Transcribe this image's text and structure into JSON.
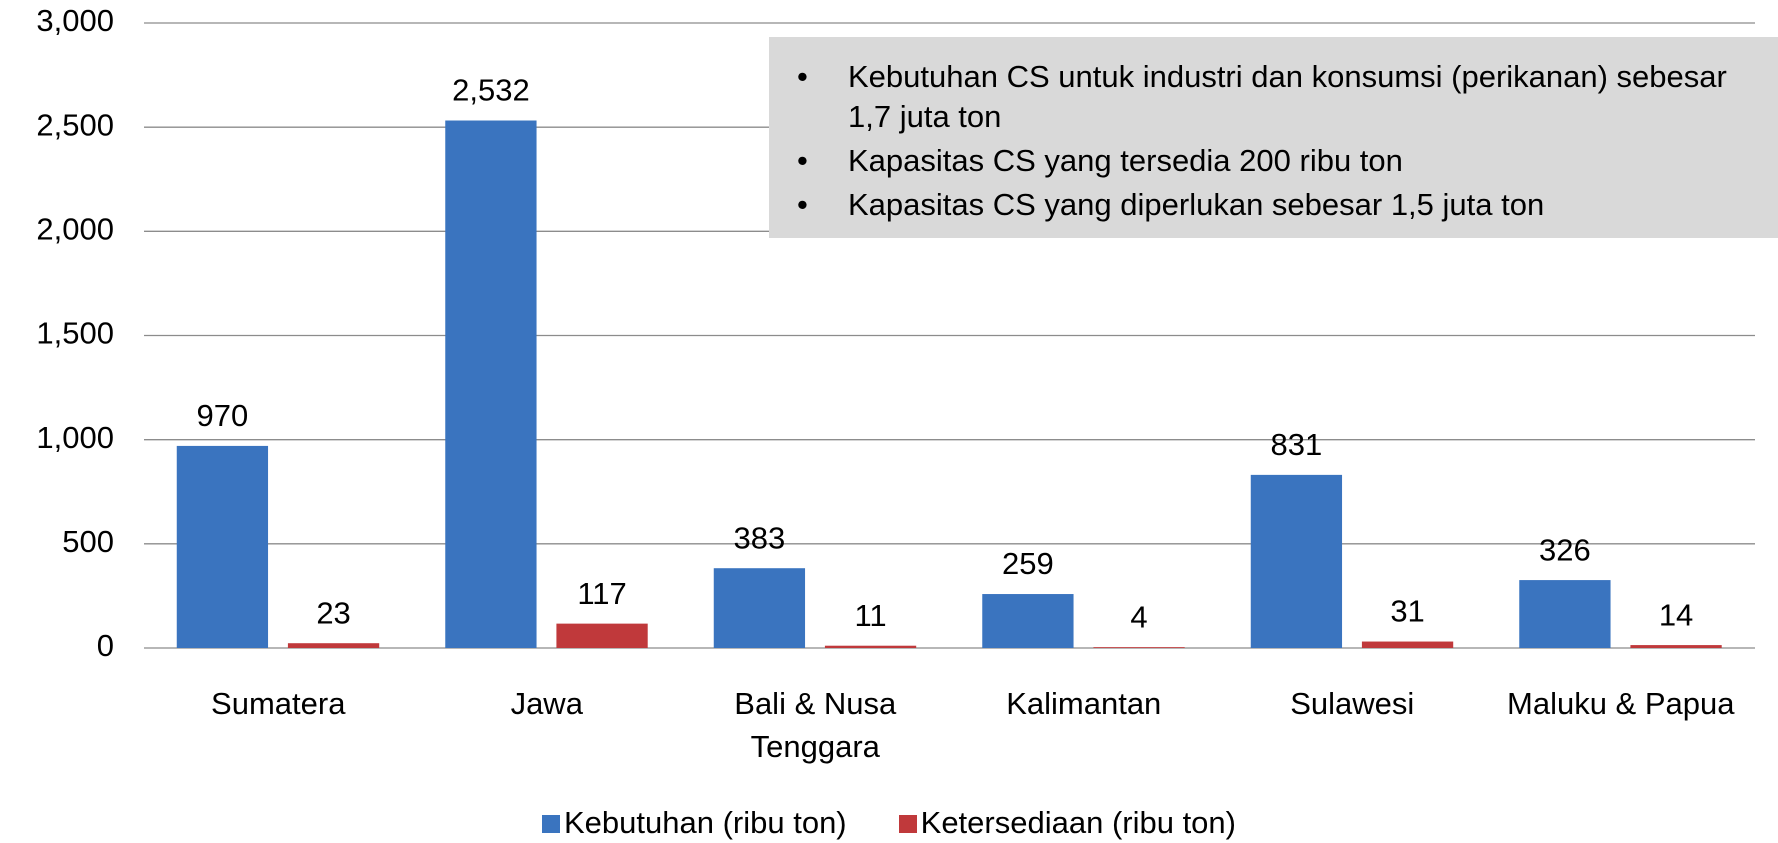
{
  "chart_data": {
    "type": "bar",
    "categories": [
      "Sumatera",
      "Jawa",
      "Bali & Nusa Tenggara",
      "Kalimantan",
      "Sulawesi",
      "Maluku & Papua"
    ],
    "series": [
      {
        "name": "Kebutuhan (ribu ton)",
        "color": "#3a74bf",
        "values": [
          970,
          2532,
          383,
          259,
          831,
          326
        ],
        "value_labels": [
          "970",
          "2,532",
          "383",
          "259",
          "831",
          "326"
        ]
      },
      {
        "name": "Ketersediaan (ribu ton)",
        "color": "#c0393b",
        "values": [
          23,
          117,
          11,
          4,
          31,
          14
        ]
      }
    ],
    "ylim": [
      0,
      3000
    ],
    "yticks": [
      0,
      500,
      {
        "value": 1000,
        "label": "1,000"
      },
      {
        "value": 1500,
        "label": "1,500"
      },
      {
        "value": 2000,
        "label": "2,000"
      },
      {
        "value": 2500,
        "label": "2,500"
      },
      {
        "value": 3000,
        "label": "3,000"
      }
    ],
    "grid": true,
    "annotations": [
      "Kebutuhan CS untuk industri dan konsumsi (perikanan) sebesar 1,7 juta ton",
      "Kapasitas CS yang tersedia 200 ribu ton",
      "Kapasitas CS yang diperlukan sebesar 1,5 juta ton"
    ]
  }
}
